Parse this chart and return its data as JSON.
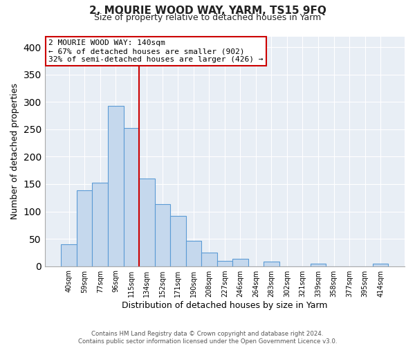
{
  "title": "2, MOURIE WOOD WAY, YARM, TS15 9FQ",
  "subtitle": "Size of property relative to detached houses in Yarm",
  "xlabel": "Distribution of detached houses by size in Yarm",
  "ylabel": "Number of detached properties",
  "bar_labels": [
    "40sqm",
    "59sqm",
    "77sqm",
    "96sqm",
    "115sqm",
    "134sqm",
    "152sqm",
    "171sqm",
    "190sqm",
    "208sqm",
    "227sqm",
    "246sqm",
    "264sqm",
    "283sqm",
    "302sqm",
    "321sqm",
    "339sqm",
    "358sqm",
    "377sqm",
    "395sqm",
    "414sqm"
  ],
  "bar_values": [
    40,
    139,
    153,
    293,
    252,
    160,
    113,
    92,
    46,
    25,
    10,
    13,
    0,
    8,
    0,
    0,
    5,
    0,
    0,
    0,
    4
  ],
  "bar_color": "#c5d8ed",
  "bar_edge_color": "#5b9bd5",
  "reference_line_index": 5,
  "reference_line_color": "#cc0000",
  "annotation_title": "2 MOURIE WOOD WAY: 140sqm",
  "annotation_line1": "← 67% of detached houses are smaller (902)",
  "annotation_line2": "32% of semi-detached houses are larger (426) →",
  "ylim": [
    0,
    420
  ],
  "yticks": [
    0,
    50,
    100,
    150,
    200,
    250,
    300,
    350,
    400
  ],
  "footer1": "Contains HM Land Registry data © Crown copyright and database right 2024.",
  "footer2": "Contains public sector information licensed under the Open Government Licence v3.0.",
  "background_color": "#ffffff",
  "plot_bg_color": "#e8eef5",
  "grid_color": "#ffffff"
}
